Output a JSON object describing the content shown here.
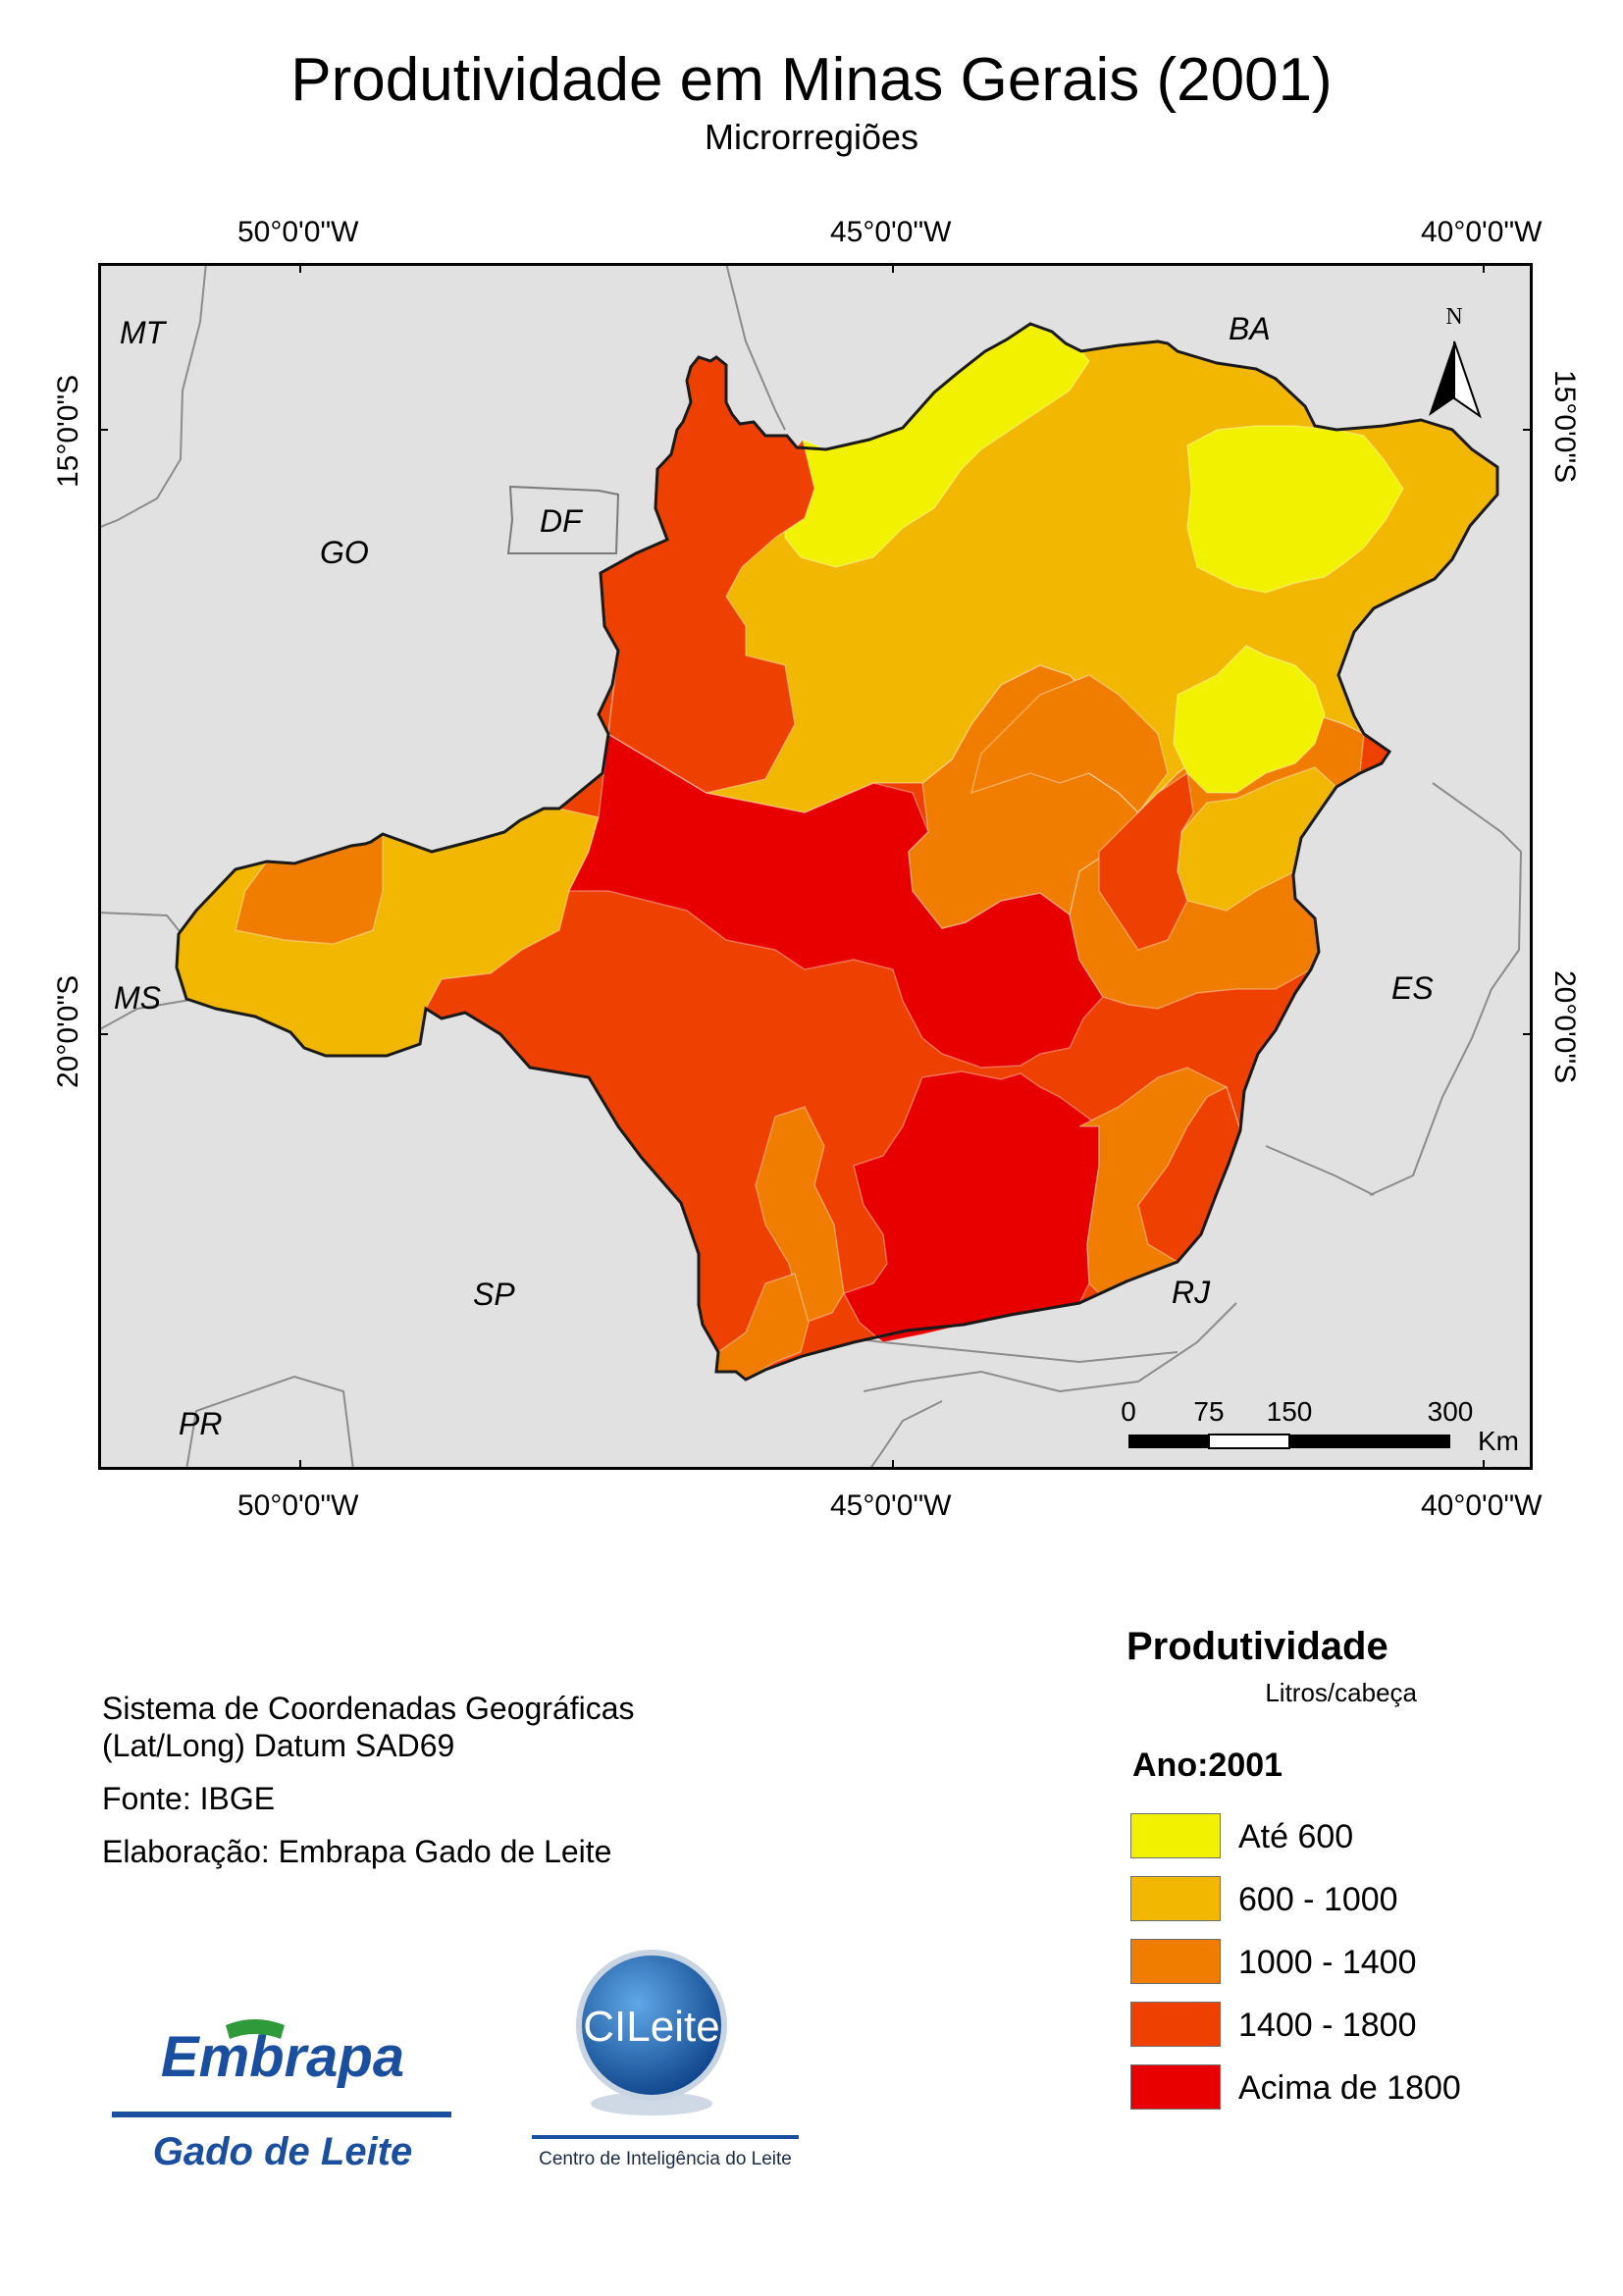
{
  "title": "Produtividade em Minas Gerais (2001)",
  "subtitle": "Microrregiões",
  "map": {
    "longitude_labels": [
      "50°0'0\"W",
      "45°0'0\"W",
      "40°0'0\"W"
    ],
    "latitude_labels": [
      "15°0'0\"S",
      "20°0'0\"S"
    ],
    "state_labels": [
      "MT",
      "BA",
      "GO",
      "DF",
      "MS",
      "ES",
      "SP",
      "RJ",
      "PR"
    ],
    "north_label": "N",
    "scale_bar": {
      "ticks": [
        "0",
        "75",
        "150",
        "300"
      ],
      "unit": "Km"
    },
    "colors": {
      "background": "#e1e1e1",
      "state_border": "#8c8c8c",
      "mg_outline": "#1a1a1a"
    }
  },
  "info": {
    "coordinate_system_line1": "Sistema de Coordenadas Geográficas",
    "coordinate_system_line2": "(Lat/Long) Datum SAD69",
    "source": "Fonte: IBGE",
    "author": "Elaboração: Embrapa Gado de Leite"
  },
  "legend": {
    "title": "Produtividade",
    "unit": "Litros/cabeça",
    "year": "Ano:2001",
    "classes": [
      {
        "label": "Até 600",
        "color": "#f2f200"
      },
      {
        "label": "600 - 1000",
        "color": "#f2b700"
      },
      {
        "label": "1000 - 1400",
        "color": "#f07d00"
      },
      {
        "label": "1400 - 1800",
        "color": "#ee4000"
      },
      {
        "label": "Acima de 1800",
        "color": "#e80000"
      }
    ]
  },
  "logos": {
    "embrapa_top": "Embrapa",
    "embrapa_bottom": "Gado de Leite",
    "cileite_name": "CILeite",
    "cileite_caption": "Centro de Inteligência do Leite"
  }
}
